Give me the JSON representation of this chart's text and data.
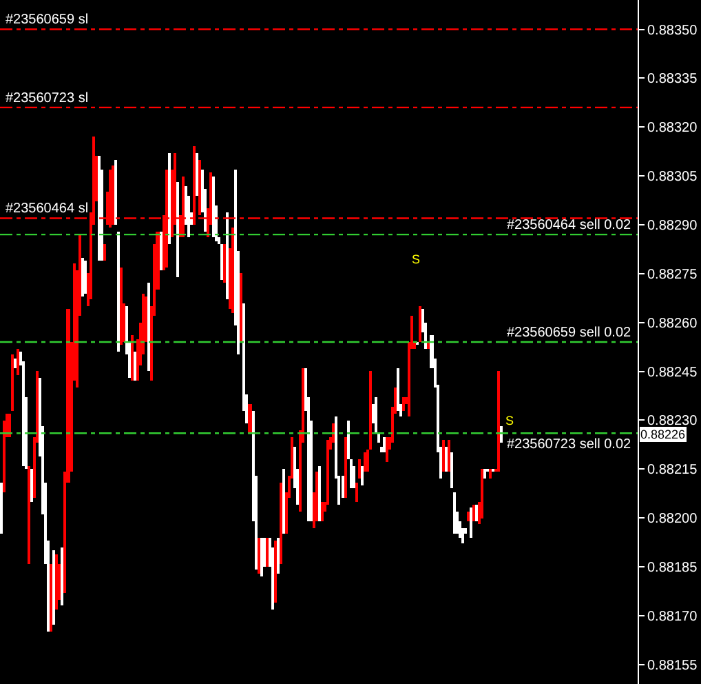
{
  "chart_data": {
    "type": "bar",
    "categories": [
      null,
      null,
      null,
      null,
      null,
      null,
      null,
      null,
      null,
      null,
      null,
      null,
      null,
      null,
      null,
      null,
      null,
      null,
      null,
      null,
      null,
      null,
      null,
      null,
      null,
      null,
      null,
      null,
      null,
      null,
      null,
      null,
      null,
      null,
      null,
      null,
      null,
      null,
      null,
      null,
      null,
      null,
      null,
      null,
      null,
      null,
      null,
      null,
      null,
      null,
      null,
      null,
      null,
      null,
      null,
      null,
      null,
      null,
      null,
      null,
      null,
      null,
      null,
      null,
      null,
      null,
      null,
      null,
      null,
      null,
      null,
      null,
      null,
      null,
      null,
      null,
      null,
      null,
      null,
      null,
      null,
      null,
      null,
      null,
      null,
      null,
      null,
      null,
      null,
      null,
      null,
      null,
      null,
      null,
      null,
      null,
      null,
      null,
      null,
      null,
      null,
      null,
      null,
      null,
      null,
      null,
      null,
      null,
      null,
      null,
      null,
      null,
      null,
      null,
      null,
      null,
      null,
      null,
      null,
      null,
      null,
      null,
      null,
      null,
      null,
      null,
      null,
      null,
      null,
      null,
      null,
      null,
      null,
      null,
      null,
      null,
      null,
      null,
      null,
      null,
      null,
      null,
      null,
      null,
      null,
      null,
      null,
      null,
      null,
      null,
      null,
      null,
      null,
      null,
      null,
      null,
      null,
      null,
      null,
      null,
      null,
      null,
      null,
      null,
      null,
      null,
      null,
      null,
      null,
      null,
      null,
      null,
      null,
      null,
      null,
      null,
      null,
      null,
      null,
      null,
      null,
      null,
      null,
      null,
      null,
      null,
      null,
      null,
      null,
      null,
      null,
      null,
      null,
      null,
      null,
      null,
      null,
      null,
      null,
      null,
      null,
      null,
      null,
      null,
      null,
      null,
      null,
      null,
      null,
      null,
      null,
      null,
      null,
      null,
      null,
      null,
      null,
      null,
      null,
      null,
      null,
      null,
      null,
      null,
      null,
      null,
      null,
      null
    ],
    "base": [
      0.88195,
      0.88208,
      0.88225,
      0.88225,
      0.88233,
      0.88246,
      0.88244,
      0.88247,
      0.88216,
      0.88215,
      0.88186,
      0.88205,
      0.88206,
      0.88223,
      0.88219,
      0.88201,
      0.88186,
      0.88165,
      0.88165,
      0.88167,
      0.88172,
      0.88175,
      0.88173,
      0.88177,
      0.88211,
      0.88214,
      0.88242,
      0.8824,
      0.88262,
      0.88268,
      0.88269,
      0.88265,
      0.88267,
      0.8829,
      0.88297,
      0.88279,
      0.88279,
      0.88279,
      0.8829,
      0.88289,
      0.8829,
      0.8829,
      0.88251,
      0.88253,
      0.88254,
      0.8825,
      0.88243,
      0.88242,
      0.88242,
      0.88242,
      0.88247,
      0.8825,
      0.88254,
      0.88245,
      0.88242,
      0.88262,
      0.8827,
      0.88276,
      0.88276,
      0.88277,
      0.88284,
      0.88286,
      0.8829,
      0.88274,
      0.88286,
      0.88286,
      0.8829,
      0.88286,
      0.8829,
      0.8829,
      0.88299,
      0.88293,
      0.88294,
      0.88288,
      0.88286,
      0.8829,
      0.88286,
      0.88285,
      0.88284,
      0.88273,
      0.88272,
      0.88267,
      0.88264,
      0.88263,
      0.88259,
      0.8825,
      0.88254,
      0.88233,
      0.88229,
      0.88226,
      0.88199,
      0.88184,
      0.88183,
      0.88182,
      0.88185,
      0.88185,
      0.88185,
      0.88172,
      0.88174,
      0.88183,
      0.88186,
      0.88195,
      0.88195,
      0.88206,
      0.88212,
      0.88209,
      0.88204,
      0.88202,
      0.88223,
      0.88233,
      0.88199,
      0.88199,
      0.88197,
      0.88199,
      0.88199,
      0.88199,
      0.88202,
      0.88204,
      0.88221,
      0.88223,
      0.88212,
      0.88204,
      0.88206,
      0.88206,
      0.88218,
      0.88209,
      0.88209,
      0.88205,
      0.88212,
      0.8821,
      0.88214,
      0.88214,
      0.88221,
      0.88229,
      0.88226,
      0.88223,
      0.8822,
      0.8822,
      0.88217,
      0.88221,
      0.88223,
      0.88232,
      0.88233,
      0.88231,
      0.88233,
      0.88235,
      0.88231,
      0.88252,
      0.88252,
      0.88253,
      0.88254,
      0.88257,
      0.88252,
      0.88252,
      0.88246,
      0.8824,
      0.8822,
      0.88212,
      0.88214,
      0.88214,
      0.88214,
      0.88209,
      0.88195,
      0.88195,
      0.88194,
      0.88192,
      0.88195,
      0.88199,
      0.88194,
      0.88199,
      0.88199,
      0.88198,
      0.882,
      0.88212,
      0.88214,
      0.88212,
      0.88214,
      0.88214,
      0.88214,
      0.88223,
      null,
      null,
      null,
      null,
      null,
      null,
      null,
      null,
      null,
      null,
      null,
      null,
      null,
      null,
      null,
      null,
      null,
      null,
      null,
      null,
      null,
      null,
      null,
      null,
      null,
      null,
      null,
      null,
      null,
      null,
      null,
      null,
      null,
      null,
      null,
      null,
      null,
      null,
      null,
      null,
      null,
      null,
      null,
      null,
      null,
      null,
      null,
      null
    ],
    "values": [
      0.00016,
      0.00022,
      7e-05,
      7e-05,
      0.00017,
      3e-05,
      8e-05,
      4e-05,
      0.00032,
      0.00022,
      0.0003,
      0.0001,
      0.00019,
      0.00022,
      0.00024,
      0.00027,
      0.00025,
      0.00028,
      0.00021,
      0.00023,
      0.00017,
      0.00011,
      0.00018,
      0.00037,
      0.00053,
      0.0004,
      0.00036,
      0.00036,
      0.00025,
      0.00012,
      0.0001,
      0.0001,
      0.00027,
      0.00027,
      0.00014,
      0.00032,
      0.00028,
      5e-05,
      0.0001,
      0.00018,
      0.00018,
      0.0002,
      0.00037,
      0.00024,
      0.00012,
      0.00015,
      0.00011,
      0.00014,
      9e-05,
      0.00013,
      0.00013,
      0.00019,
      0.00014,
      0.00027,
      0.00023,
      0.00022,
      0.00018,
      0.00012,
      0.00017,
      0.0003,
      0.00028,
      0.00021,
      0.00022,
      0.00029,
      7e-05,
      0.00019,
      0.00012,
      0.00013,
      4e-05,
      0.00024,
      0.00013,
      0.00017,
      0.00013,
      0.00013,
      9e-05,
      0.00016,
      0.00019,
      0.00011,
      2e-05,
      0.00011,
      0.00012,
      0.00027,
      0.00019,
      0.00026,
      0.00048,
      0.00032,
      0.00021,
      0.00033,
      9e-05,
      9e-05,
      0.00034,
      0.00029,
      0.00011,
      0.00012,
      9e-05,
      9e-05,
      9e-05,
      0.00019,
      0.00019,
      0.00011,
      0.00025,
      0.0002,
      0.00013,
      7e-05,
      0.00013,
      0.00013,
      0.00011,
      0.00025,
      0.00023,
      0.00013,
      0.00038,
      0.00031,
      0.00011,
      0.00015,
      0.00017,
      6e-05,
      3e-05,
      0.0002,
      4e-05,
      6e-05,
      0.00019,
      9e-05,
      7e-05,
      0.00019,
      0.00012,
      9e-05,
      7e-05,
      6e-05,
      6e-05,
      6e-05,
      6e-05,
      7e-05,
      0.00024,
      6e-05,
      0.00011,
      3e-05,
      2e-05,
      5e-05,
      8e-05,
      4e-05,
      0.00011,
      8e-05,
      0.00013,
      4e-05,
      4e-05,
      2e-05,
      0.00023,
      0.0001,
      2e-05,
      1e-05,
      0.00011,
      7e-05,
      8e-05,
      2e-05,
      0.0001,
      9e-05,
      0.00021,
      0.0001,
      0.0001,
      8e-05,
      0.0001,
      0.00011,
      0.00013,
      7e-05,
      5e-05,
      5e-05,
      2e-05,
      3e-05,
      9e-05,
      5e-05,
      5e-05,
      7e-05,
      0.00015,
      3e-05,
      1e-05,
      3e-05,
      1e-05,
      1e-05,
      0.00031,
      5e-05,
      null,
      null,
      null,
      null,
      null,
      null,
      null,
      null,
      null,
      null,
      null,
      null,
      null,
      null,
      null,
      null,
      null,
      null,
      null,
      null,
      null,
      null,
      null,
      null,
      null,
      null,
      null,
      null,
      null,
      null,
      null,
      null,
      null,
      null,
      null,
      null,
      null,
      null,
      null,
      null,
      null,
      null,
      null,
      null,
      null,
      null,
      null,
      null
    ],
    "colors": [
      "#ffffff",
      "#ff0000",
      "#ff0000",
      "#ff0000",
      "#ff0000",
      "#ffffff",
      "#ff0000",
      "#ffffff",
      "#ffffff",
      "#ffffff",
      "#ff0000",
      "#ffffff",
      "#ff0000",
      "#ff0000",
      "#ffffff",
      "#ffffff",
      "#ffffff",
      "#ffffff",
      "#ff0000",
      "#ffffff",
      "#ff0000",
      "#ff0000",
      "#ffffff",
      "#ff0000",
      "#ff0000",
      "#ff0000",
      "#ff0000",
      "#ff0000",
      "#ff0000",
      "#ffffff",
      "#ffffff",
      "#ff0000",
      "#ff0000",
      "#ff0000",
      "#ff0000",
      "#ffffff",
      "#ffffff",
      "#ff0000",
      "#ff0000",
      "#ff0000",
      "#ff0000",
      "#ffffff",
      "#ffffff",
      "#ff0000",
      "#ff0000",
      "#ffffff",
      "#ffffff",
      "#ff0000",
      "#ffffff",
      "#ff0000",
      "#ff0000",
      "#ff0000",
      "#ff0000",
      "#ffffff",
      "#ff0000",
      "#ff0000",
      "#ff0000",
      "#ffffff",
      "#ff0000",
      "#ff0000",
      "#ffffff",
      "#ff0000",
      "#ff0000",
      "#ffffff",
      "#ff0000",
      "#ff0000",
      "#ffffff",
      "#ffffff",
      "#ffffff",
      "#ff0000",
      "#ffffff",
      "#ff0000",
      "#ffffff",
      "#ffffff",
      "#ff0000",
      "#ff0000",
      "#ffffff",
      "#ffffff",
      "#ffffff",
      "#ffffff",
      "#ff0000",
      "#ffffff",
      "#ff0000",
      "#ff0000",
      "#ffffff",
      "#ffffff",
      "#ff0000",
      "#ffffff",
      "#ffffff",
      "#ff0000",
      "#ffffff",
      "#ffffff",
      "#ff0000",
      "#ffffff",
      "#ffffff",
      "#ff0000",
      "#ffffff",
      "#ffffff",
      "#ff0000",
      "#ffffff",
      "#ff0000",
      "#ffffff",
      "#ff0000",
      "#ff0000",
      "#ff0000",
      "#ffffff",
      "#ffffff",
      "#ff0000",
      "#ff0000",
      "#ffffff",
      "#ffffff",
      "#ffffff",
      "#ff0000",
      "#ff0000",
      "#ffffff",
      "#ff0000",
      "#ff0000",
      "#ff0000",
      "#ff0000",
      "#ff0000",
      "#ffffff",
      "#ffffff",
      "#ffffff",
      "#ff0000",
      "#ffffff",
      "#ffffff",
      "#ffffff",
      "#ff0000",
      "#ff0000",
      "#ffffff",
      "#ff0000",
      "#ff0000",
      "#ff0000",
      "#ffffff",
      "#ffffff",
      "#ffffff",
      "#ffffff",
      "#ffffff",
      "#ff0000",
      "#ff0000",
      "#ff0000",
      "#ff0000",
      "#ffffff",
      "#ffffff",
      "#ff0000",
      "#ff0000",
      "#ff0000",
      "#ff0000",
      "#ff0000",
      "#ffffff",
      "#ff0000",
      "#ffffff",
      "#ffffff",
      "#ff0000",
      "#ffffff",
      "#ffffff",
      "#ffffff",
      "#ffffff",
      "#ff0000",
      "#ffffff",
      "#ff0000",
      "#ffffff",
      "#ffffff",
      "#ffffff",
      "#ffffff",
      "#ffffff",
      "#ffffff",
      "#ff0000",
      "#ffffff",
      "#ff0000",
      "#ffffff",
      "#ff0000",
      "#ff0000",
      "#ffffff",
      "#ffffff",
      "#ff0000",
      "#ffffff",
      "#ff0000",
      "#ff0000",
      "#ffffff",
      "#ffffff",
      "#ffffff",
      "#ffffff",
      "#ffffff",
      "#ffffff",
      "#ffffff",
      "#ffffff",
      "#ffffff",
      "#ffffff",
      "#ffffff",
      "#ffffff",
      "#ffffff",
      "#ffffff",
      "#ffffff",
      "#ffffff",
      "#ffffff",
      "#ffffff",
      "#ffffff",
      "#ffffff",
      "#ffffff",
      "#ffffff",
      "#ffffff",
      "#ffffff",
      "#ffffff",
      "#ffffff",
      "#ffffff",
      "#ffffff",
      "#ffffff",
      "#ffffff",
      "#ffffff",
      "#ffffff",
      "#ffffff",
      "#ffffff",
      "#ffffff",
      "#ffffff",
      "#ffffff",
      "#ffffff",
      "#ffffff",
      "#ffffff",
      "#ffffff",
      "#ffffff",
      "#ffffff",
      "#ffffff",
      "#ffffff",
      "#ffffff",
      "#ffffff",
      "#ffffff",
      "#ffffff"
    ],
    "ylim": [
      0.88149,
      0.88359
    ],
    "yticks": [
      {
        "value": 0.8835,
        "label": "0.88350"
      },
      0.88335,
      {
        "value": 0.8832,
        "label": "0.88320"
      },
      0.88305,
      {
        "value": 0.8829,
        "label": "0.88290"
      },
      0.88275,
      {
        "value": 0.8826,
        "label": "0.88260"
      },
      0.88245,
      {
        "value": 0.8823,
        "label": "0.88230"
      },
      0.88215,
      {
        "value": 0.882,
        "label": "0.88200"
      },
      0.88185,
      {
        "value": 0.8817,
        "label": "0.88170"
      },
      0.88155
    ],
    "tick_labels": "y",
    "ref_lines": [
      {
        "axis": "y",
        "value": 0.8835,
        "label": "#23560659 sl",
        "color": "#ff0000",
        "line_style": "dashed"
      },
      {
        "axis": "y",
        "value": 0.88326,
        "label": "#23560723 sl",
        "color": "#ff0000",
        "line_style": "dashed"
      },
      {
        "axis": "y",
        "value": 0.88292,
        "label": "#23560464 sl",
        "color": "#ff0000",
        "line_style": "dashed"
      },
      {
        "axis": "y",
        "value": 0.88287,
        "label": "#23560464 sell 0.02",
        "color": "#32cd32",
        "line_style": "dashed"
      },
      {
        "axis": "y",
        "value": 0.88254,
        "label": "#23560659 sell 0.02",
        "color": "#32cd32",
        "line_style": "dashed"
      },
      {
        "axis": "y",
        "value": 0.88226,
        "label": "#23560723 sell 0.02",
        "color": "#32cd32",
        "line_style": "dashed"
      }
    ],
    "annotations": [
      "S",
      "S",
      {
        "text": "0.88226",
        "y": 0.88226
      }
    ]
  }
}
